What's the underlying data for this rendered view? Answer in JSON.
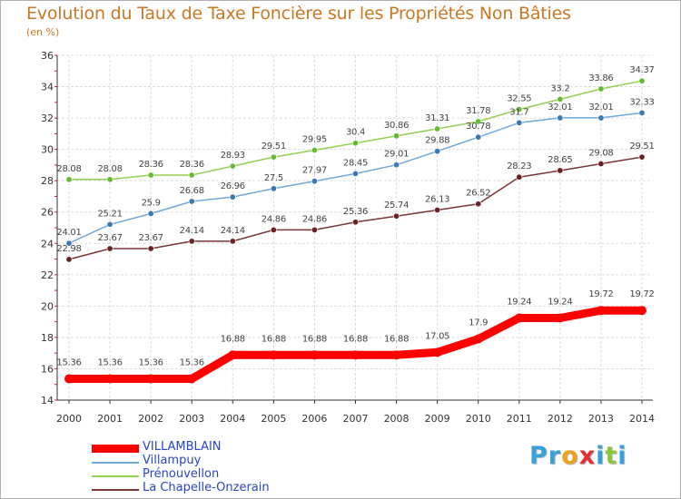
{
  "title": "Evolution du Taux de Taxe Foncière sur les Propriétés Non Bâties",
  "unit": "(en %)",
  "logo": {
    "text": "Proxiti",
    "letters": [
      {
        "ch": "P",
        "color": "#3aa0d8"
      },
      {
        "ch": "r",
        "color": "#3aa0d8"
      },
      {
        "ch": "o",
        "color": "#f0a020"
      },
      {
        "ch": "x",
        "color": "#e03030"
      },
      {
        "ch": "i",
        "color": "#3aa0d8"
      },
      {
        "ch": "t",
        "color": "#8cc63f"
      },
      {
        "ch": "i",
        "color": "#3aa0d8"
      }
    ]
  },
  "chart_data": {
    "type": "line",
    "x": [
      "2000",
      "2001",
      "2002",
      "2003",
      "2004",
      "2005",
      "2006",
      "2007",
      "2008",
      "2009",
      "2010",
      "2011",
      "2012",
      "2013",
      "2014"
    ],
    "ylim": [
      14,
      36
    ],
    "yticks": [
      14,
      16,
      18,
      20,
      22,
      24,
      26,
      28,
      30,
      32,
      34,
      36
    ],
    "grid": true,
    "legend_position": "bottom-left",
    "series": [
      {
        "name": "VILLAMBLAIN",
        "color": "#ff0000",
        "marker_color": "#ff0000",
        "bold": true,
        "values": [
          15.36,
          15.36,
          15.36,
          15.36,
          16.88,
          16.88,
          16.88,
          16.88,
          16.88,
          17.05,
          17.9,
          19.24,
          19.24,
          19.72,
          19.72
        ],
        "labels": [
          "15.36",
          "15.36",
          "15.36",
          "15.36",
          "16.88",
          "16.88",
          "16.88",
          "16.88",
          "16.88",
          "17.05",
          "17.9",
          "19.24",
          "19.24",
          "19.72",
          "19.72"
        ]
      },
      {
        "name": "Villampuy",
        "color": "#6fa8dc",
        "marker_color": "#3d78b5",
        "bold": false,
        "values": [
          24.01,
          25.21,
          25.9,
          26.68,
          26.96,
          27.5,
          27.97,
          28.45,
          29.01,
          29.88,
          30.78,
          31.7,
          32.01,
          32.01,
          32.33
        ],
        "labels": [
          "24.01",
          "25.21",
          "25.9",
          "26.68",
          "26.96",
          "27.5",
          "27.97",
          "28.45",
          "29.01",
          "29.88",
          "30.78",
          "31.7",
          "32.01",
          "32.01",
          "32.33"
        ]
      },
      {
        "name": "Prénouvellon",
        "color": "#93d050",
        "marker_color": "#66bb33",
        "bold": false,
        "values": [
          28.08,
          28.08,
          28.36,
          28.36,
          28.93,
          29.51,
          29.95,
          30.4,
          30.86,
          31.31,
          31.78,
          32.55,
          33.2,
          33.86,
          34.37
        ],
        "labels": [
          "28.08",
          "28.08",
          "28.36",
          "28.36",
          "28.93",
          "29.51",
          "29.95",
          "30.4",
          "30.86",
          "31.31",
          "31.78",
          "32.55",
          "33.2",
          "33.86",
          "34.37"
        ]
      },
      {
        "name": "La Chapelle-Onzerain",
        "color": "#7b3535",
        "marker_color": "#6a2222",
        "bold": false,
        "values": [
          22.98,
          23.67,
          23.67,
          24.14,
          24.14,
          24.86,
          24.86,
          25.36,
          25.74,
          26.13,
          26.52,
          28.23,
          28.65,
          29.08,
          29.51
        ],
        "labels": [
          "22.98",
          "23.67",
          "23.67",
          "24.14",
          "24.14",
          "24.86",
          "24.86",
          "25.36",
          "25.74",
          "26.13",
          "26.52",
          "28.23",
          "28.65",
          "29.08",
          "29.51"
        ]
      }
    ]
  }
}
